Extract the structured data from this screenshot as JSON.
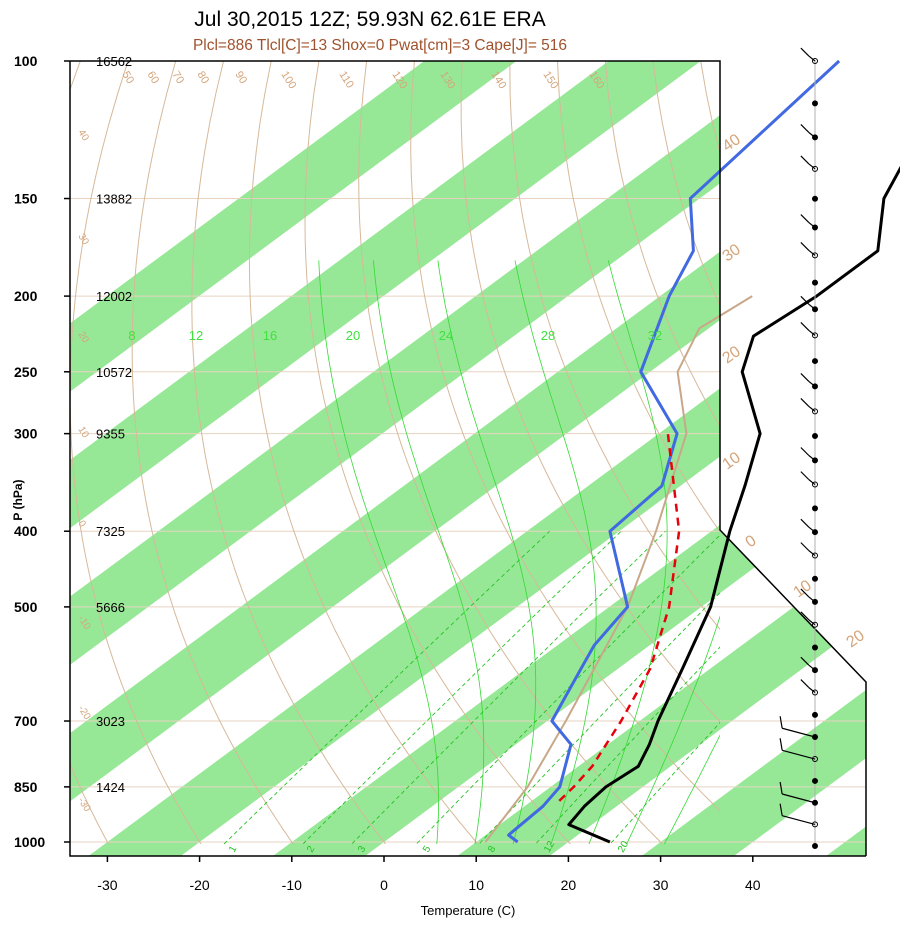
{
  "chart_data": {
    "type": "skew-t",
    "title": "Jul 30,2015 12Z; 59.93N 62.61E ERA",
    "subtitle": "Plcl=886 Tlcl[C]=13 Shox=0 Pwat[cm]=3 Cape[J]= 516",
    "xlabel": "Temperature (C)",
    "ylabel": "P (hPa)",
    "x_ticks": [
      "-30",
      "-20",
      "-10",
      "0",
      "10",
      "20",
      "30",
      "40"
    ],
    "pressure_levels": [
      {
        "p": 100,
        "label": "100",
        "height": "16562"
      },
      {
        "p": 150,
        "label": "150",
        "height": "13882"
      },
      {
        "p": 200,
        "label": "200",
        "height": "12002"
      },
      {
        "p": 250,
        "label": "250",
        "height": "10572"
      },
      {
        "p": 300,
        "label": "300",
        "height": "9355"
      },
      {
        "p": 400,
        "label": "400",
        "height": "7325"
      },
      {
        "p": 500,
        "label": "500",
        "height": "5666"
      },
      {
        "p": 700,
        "label": "700",
        "height": "3023"
      },
      {
        "p": 850,
        "label": "850",
        "height": "1424"
      },
      {
        "p": 1000,
        "label": "1000",
        "height": ""
      }
    ],
    "series": [
      {
        "name": "temperature",
        "color": "#000000",
        "points": [
          [
            1000,
            24.5
          ],
          [
            950,
            17.5
          ],
          [
            900,
            16.5
          ],
          [
            850,
            16.0
          ],
          [
            800,
            16.5
          ],
          [
            750,
            14.5
          ],
          [
            700,
            12.0
          ],
          [
            600,
            7.0
          ],
          [
            500,
            1.0
          ],
          [
            400,
            -8.0
          ],
          [
            350,
            -13.0
          ],
          [
            300,
            -19.0
          ],
          [
            250,
            -30.0
          ],
          [
            225,
            -34.0
          ],
          [
            200,
            -33.0
          ],
          [
            175,
            -33.0
          ],
          [
            150,
            -40.0
          ],
          [
            100,
            -52.0
          ]
        ]
      },
      {
        "name": "dewpoint",
        "color": "#4169e1",
        "points": [
          [
            1000,
            14.5
          ],
          [
            980,
            12.5
          ],
          [
            900,
            12.0
          ],
          [
            850,
            11.0
          ],
          [
            750,
            6.0
          ],
          [
            700,
            0.5
          ],
          [
            600,
            -4.0
          ],
          [
            560,
            -6.0
          ],
          [
            500,
            -8.0
          ],
          [
            400,
            -21.0
          ],
          [
            350,
            -22.0
          ],
          [
            300,
            -28.0
          ],
          [
            250,
            -41.0
          ],
          [
            200,
            -49.0
          ],
          [
            175,
            -53.0
          ],
          [
            150,
            -61.0
          ],
          [
            100,
            -65.0
          ]
        ]
      },
      {
        "name": "parcel",
        "color": "#e8000b",
        "points": [
          [
            886,
            13.0
          ],
          [
            850,
            12.5
          ],
          [
            800,
            11.5
          ],
          [
            700,
            8.0
          ],
          [
            600,
            3.5
          ],
          [
            500,
            -3.5
          ],
          [
            400,
            -13.5
          ],
          [
            300,
            -29.0
          ]
        ]
      },
      {
        "name": "environmental-temperature-tan",
        "color": "#c8a888",
        "points": [
          [
            1000,
            11.0
          ],
          [
            850,
            7.5
          ],
          [
            700,
            2.0
          ],
          [
            500,
            -8.0
          ],
          [
            400,
            -16.0
          ],
          [
            300,
            -27.0
          ],
          [
            250,
            -37.0
          ],
          [
            220,
            -41.0
          ],
          [
            200,
            -40.0
          ]
        ]
      }
    ],
    "isotherm_labels": [
      "40",
      "30",
      "20",
      "10",
      "0",
      "-10",
      "-20",
      "-30"
    ],
    "isotherm_label_fragments": [
      "40",
      "30",
      "20",
      "10",
      "0",
      "10",
      "20",
      "30"
    ],
    "dry_adiabat_labels": [
      "50",
      "60",
      "70",
      "80",
      "90",
      "100",
      "110",
      "120",
      "130",
      "140",
      "150",
      "160"
    ],
    "dry_adiabat_left_labels": [
      "40",
      "30",
      "20",
      "10",
      "0",
      "-10",
      "-20",
      "-30"
    ],
    "mixing_ratio_top_labels": [
      "8",
      "12",
      "16",
      "20",
      "24",
      "28",
      "32"
    ],
    "mixing_ratio_bottom_labels": [
      "1",
      "2",
      "3",
      "5",
      "8",
      "12",
      "20"
    ],
    "wind_barb_levels": 32
  },
  "colors": {
    "green_band": "#97e896",
    "dry_adiabat": "#d6b99a",
    "grid": "#e7d3c0",
    "moist_adiabat": "#34d934",
    "mixing_ratio": "#22c322",
    "label_brown": "#d4a57c"
  }
}
